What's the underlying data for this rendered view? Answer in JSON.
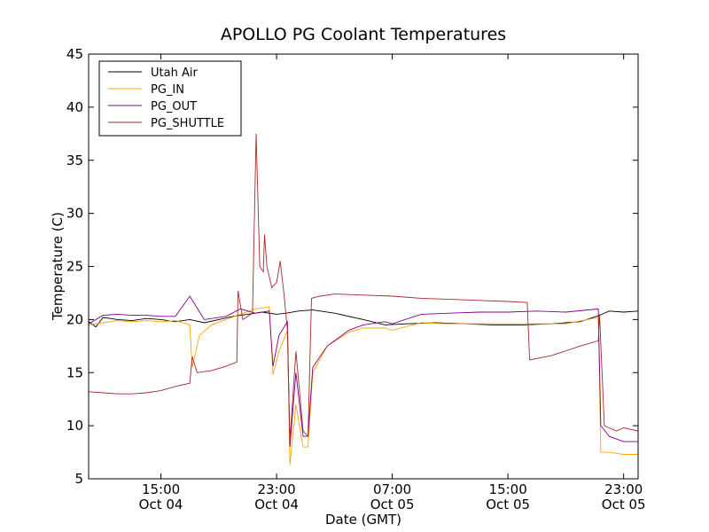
{
  "chart_data": {
    "type": "line",
    "title": "APOLLO PG Coolant Temperatures",
    "xlabel": "Date (GMT)",
    "ylabel": "Temperature (C)",
    "xlim": [
      "2012-10-04 10:00",
      "2012-10-06 00:00"
    ],
    "ylim": [
      5,
      45
    ],
    "yticks": [
      5,
      10,
      15,
      20,
      25,
      30,
      35,
      40,
      45
    ],
    "xticks": [
      {
        "t": "2012-10-04 15:00",
        "line1": "15:00",
        "line2": "Oct 04"
      },
      {
        "t": "2012-10-04 23:00",
        "line1": "23:00",
        "line2": "Oct 04"
      },
      {
        "t": "2012-10-05 07:00",
        "line1": "07:00",
        "line2": "Oct 05"
      },
      {
        "t": "2012-10-05 15:00",
        "line1": "15:00",
        "line2": "Oct 05"
      },
      {
        "t": "2012-10-05 23:00",
        "line1": "23:00",
        "line2": "Oct 05"
      }
    ],
    "legend_position": "top-left",
    "grid": false,
    "series": [
      {
        "name": "Utah Air",
        "color": "#000000",
        "points": [
          [
            "2012-10-04 10:00",
            19.8
          ],
          [
            "2012-10-04 10:30",
            19.3
          ],
          [
            "2012-10-04 11:00",
            20.2
          ],
          [
            "2012-10-04 12:00",
            20.0
          ],
          [
            "2012-10-04 13:00",
            19.9
          ],
          [
            "2012-10-04 14:00",
            20.1
          ],
          [
            "2012-10-04 15:00",
            20.0
          ],
          [
            "2012-10-04 16:00",
            19.8
          ],
          [
            "2012-10-04 17:00",
            20.0
          ],
          [
            "2012-10-04 18:00",
            19.7
          ],
          [
            "2012-10-04 19:00",
            20.0
          ],
          [
            "2012-10-04 20:00",
            20.3
          ],
          [
            "2012-10-04 21:00",
            20.5
          ],
          [
            "2012-10-04 22:00",
            20.7
          ],
          [
            "2012-10-04 23:00",
            20.5
          ],
          [
            "2012-10-04 23:40",
            20.6
          ],
          [
            "2012-10-05 00:30",
            20.8
          ],
          [
            "2012-10-05 01:30",
            20.9
          ],
          [
            "2012-10-05 03:00",
            20.6
          ],
          [
            "2012-10-05 05:00",
            20.0
          ],
          [
            "2012-10-05 06:30",
            19.5
          ],
          [
            "2012-10-05 08:00",
            19.6
          ],
          [
            "2012-10-05 10:00",
            19.7
          ],
          [
            "2012-10-05 12:00",
            19.6
          ],
          [
            "2012-10-05 14:00",
            19.5
          ],
          [
            "2012-10-05 16:00",
            19.5
          ],
          [
            "2012-10-05 18:00",
            19.6
          ],
          [
            "2012-10-05 20:00",
            19.8
          ],
          [
            "2012-10-05 21:20",
            20.4
          ],
          [
            "2012-10-05 22:00",
            20.8
          ],
          [
            "2012-10-05 23:00",
            20.7
          ],
          [
            "2012-10-06 00:00",
            20.8
          ]
        ]
      },
      {
        "name": "PG_IN",
        "color": "#ffa500",
        "points": [
          [
            "2012-10-04 10:00",
            19.5
          ],
          [
            "2012-10-04 11:00",
            19.7
          ],
          [
            "2012-10-04 12:00",
            19.9
          ],
          [
            "2012-10-04 13:00",
            19.8
          ],
          [
            "2012-10-04 14:00",
            19.9
          ],
          [
            "2012-10-04 15:00",
            19.8
          ],
          [
            "2012-10-04 16:00",
            19.9
          ],
          [
            "2012-10-04 17:00",
            19.5
          ],
          [
            "2012-10-04 17:10",
            15.5
          ],
          [
            "2012-10-04 17:40",
            18.5
          ],
          [
            "2012-10-04 18:30",
            19.5
          ],
          [
            "2012-10-04 19:30",
            20.0
          ],
          [
            "2012-10-04 20:30",
            20.5
          ],
          [
            "2012-10-04 21:30",
            21.0
          ],
          [
            "2012-10-04 22:30",
            21.2
          ],
          [
            "2012-10-04 22:45",
            14.8
          ],
          [
            "2012-10-04 23:10",
            17.0
          ],
          [
            "2012-10-04 23:45",
            19.0
          ],
          [
            "2012-10-04 23:55",
            6.3
          ],
          [
            "2012-10-05 00:20",
            12.0
          ],
          [
            "2012-10-05 00:50",
            8.0
          ],
          [
            "2012-10-05 01:10",
            8.0
          ],
          [
            "2012-10-05 01:30",
            15.0
          ],
          [
            "2012-10-05 02:30",
            17.5
          ],
          [
            "2012-10-05 04:00",
            18.8
          ],
          [
            "2012-10-05 05:00",
            19.2
          ],
          [
            "2012-10-05 06:30",
            19.2
          ],
          [
            "2012-10-05 07:00",
            19.0
          ],
          [
            "2012-10-05 09:00",
            19.7
          ],
          [
            "2012-10-05 11:00",
            19.6
          ],
          [
            "2012-10-05 13:00",
            19.6
          ],
          [
            "2012-10-05 15:00",
            19.6
          ],
          [
            "2012-10-05 17:00",
            19.6
          ],
          [
            "2012-10-05 19:00",
            19.6
          ],
          [
            "2012-10-05 21:15",
            20.2
          ],
          [
            "2012-10-05 21:25",
            7.5
          ],
          [
            "2012-10-05 22:00",
            7.5
          ],
          [
            "2012-10-05 23:00",
            7.3
          ],
          [
            "2012-10-06 00:00",
            7.3
          ]
        ]
      },
      {
        "name": "PG_OUT",
        "color": "#800080",
        "points": [
          [
            "2012-10-04 10:00",
            19.6
          ],
          [
            "2012-10-04 11:00",
            20.4
          ],
          [
            "2012-10-04 12:00",
            20.5
          ],
          [
            "2012-10-04 13:00",
            20.4
          ],
          [
            "2012-10-04 14:00",
            20.4
          ],
          [
            "2012-10-04 15:00",
            20.3
          ],
          [
            "2012-10-04 16:00",
            20.3
          ],
          [
            "2012-10-04 17:00",
            22.2
          ],
          [
            "2012-10-04 18:00",
            20.0
          ],
          [
            "2012-10-04 19:30",
            20.3
          ],
          [
            "2012-10-04 20:30",
            21.0
          ],
          [
            "2012-10-04 21:30",
            20.6
          ],
          [
            "2012-10-04 22:30",
            20.8
          ],
          [
            "2012-10-04 22:45",
            15.6
          ],
          [
            "2012-10-04 23:10",
            18.5
          ],
          [
            "2012-10-04 23:45",
            19.8
          ],
          [
            "2012-10-04 23:55",
            8.0
          ],
          [
            "2012-10-05 00:20",
            15.0
          ],
          [
            "2012-10-05 00:50",
            9.0
          ],
          [
            "2012-10-05 01:10",
            9.0
          ],
          [
            "2012-10-05 01:30",
            15.5
          ],
          [
            "2012-10-05 02:30",
            17.5
          ],
          [
            "2012-10-05 04:00",
            19.0
          ],
          [
            "2012-10-05 05:00",
            19.5
          ],
          [
            "2012-10-05 06:30",
            19.8
          ],
          [
            "2012-10-05 07:00",
            19.6
          ],
          [
            "2012-10-05 09:00",
            20.5
          ],
          [
            "2012-10-05 11:00",
            20.6
          ],
          [
            "2012-10-05 13:00",
            20.7
          ],
          [
            "2012-10-05 15:00",
            20.7
          ],
          [
            "2012-10-05 17:00",
            20.8
          ],
          [
            "2012-10-05 19:00",
            20.7
          ],
          [
            "2012-10-05 21:15",
            21.0
          ],
          [
            "2012-10-05 21:25",
            10.0
          ],
          [
            "2012-10-05 22:00",
            9.0
          ],
          [
            "2012-10-05 23:00",
            8.5
          ],
          [
            "2012-10-06 00:00",
            8.5
          ]
        ]
      },
      {
        "name": "PG_SHUTTLE",
        "color": "#a52a2a",
        "points": [
          [
            "2012-10-04 10:00",
            13.2
          ],
          [
            "2012-10-04 11:00",
            13.1
          ],
          [
            "2012-10-04 12:00",
            13.0
          ],
          [
            "2012-10-04 13:00",
            13.0
          ],
          [
            "2012-10-04 14:00",
            13.1
          ],
          [
            "2012-10-04 15:00",
            13.3
          ],
          [
            "2012-10-04 16:00",
            13.7
          ],
          [
            "2012-10-04 17:00",
            14.0
          ],
          [
            "2012-10-04 17:10",
            16.5
          ],
          [
            "2012-10-04 17:30",
            15.0
          ],
          [
            "2012-10-04 18:30",
            15.2
          ],
          [
            "2012-10-04 19:30",
            15.6
          ],
          [
            "2012-10-04 20:15",
            16.0
          ],
          [
            "2012-10-04 20:20",
            22.7
          ],
          [
            "2012-10-04 20:40",
            20.0
          ],
          [
            "2012-10-04 21:20",
            20.6
          ],
          [
            "2012-10-04 21:35",
            37.5
          ],
          [
            "2012-10-04 21:50",
            25.0
          ],
          [
            "2012-10-04 22:05",
            24.5
          ],
          [
            "2012-10-04 22:10",
            28.0
          ],
          [
            "2012-10-04 22:20",
            25.0
          ],
          [
            "2012-10-04 22:40",
            23.0
          ],
          [
            "2012-10-04 23:00",
            23.5
          ],
          [
            "2012-10-04 23:15",
            25.5
          ],
          [
            "2012-10-04 23:30",
            22.5
          ],
          [
            "2012-10-04 23:45",
            19.0
          ],
          [
            "2012-10-04 23:55",
            8.5
          ],
          [
            "2012-10-05 00:20",
            17.0
          ],
          [
            "2012-10-05 00:50",
            9.5
          ],
          [
            "2012-10-05 01:10",
            9.0
          ],
          [
            "2012-10-05 01:25",
            22.0
          ],
          [
            "2012-10-05 02:00",
            22.2
          ],
          [
            "2012-10-05 03:00",
            22.4
          ],
          [
            "2012-10-05 05:00",
            22.3
          ],
          [
            "2012-10-05 07:00",
            22.2
          ],
          [
            "2012-10-05 09:00",
            22.0
          ],
          [
            "2012-10-05 11:00",
            21.9
          ],
          [
            "2012-10-05 13:00",
            21.8
          ],
          [
            "2012-10-05 15:00",
            21.7
          ],
          [
            "2012-10-05 16:20",
            21.6
          ],
          [
            "2012-10-05 16:30",
            16.2
          ],
          [
            "2012-10-05 18:00",
            16.6
          ],
          [
            "2012-10-05 20:00",
            17.5
          ],
          [
            "2012-10-05 21:15",
            18.0
          ],
          [
            "2012-10-05 21:20",
            20.5
          ],
          [
            "2012-10-05 21:40",
            10.0
          ],
          [
            "2012-10-05 22:30",
            9.5
          ],
          [
            "2012-10-05 23:00",
            9.8
          ],
          [
            "2012-10-06 00:00",
            9.5
          ]
        ]
      }
    ]
  }
}
